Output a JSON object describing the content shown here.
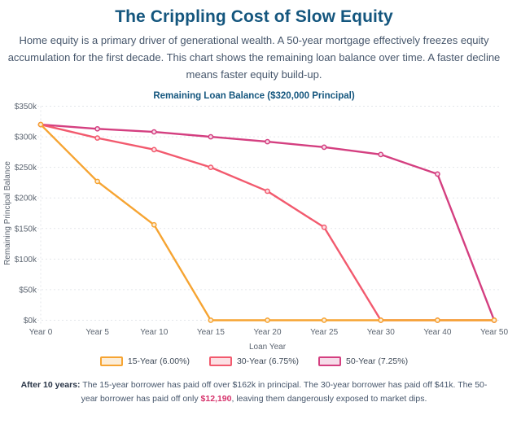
{
  "page": {
    "title": "The Crippling Cost of Slow Equity",
    "subtitle": "Home equity is a primary driver of generational wealth. A 50-year mortgage effectively freezes equity accumulation for the first decade. This chart shows the remaining loan balance over time. A faster decline means faster equity build-up.",
    "footer": {
      "prefix_bold": "After 10 years:",
      "text_before": " The 15-year borrower has paid off over $162k in principal. The 30-year borrower has paid off $41k. The 50-year borrower has paid off only ",
      "highlight": "$12,190",
      "text_after": ", leaving them dangerously exposed to market dips."
    }
  },
  "chart_data": {
    "type": "line",
    "title": "Remaining Loan Balance ($320,000 Principal)",
    "xlabel": "Loan Year",
    "ylabel": "Remaining Principal Balance",
    "x_axis_type": "category",
    "categories": [
      "Year 0",
      "Year 5",
      "Year 10",
      "Year 15",
      "Year 20",
      "Year 25",
      "Year 30",
      "Year 40",
      "Year 50"
    ],
    "y_tick_labels": [
      "$350k",
      "$300k",
      "$250k",
      "$200k",
      "$150k",
      "$100k",
      "$50k",
      "$0k"
    ],
    "y_unit": "thousand USD",
    "ylim": [
      0,
      350
    ],
    "grid": "horizontal dotted",
    "legend_position": "bottom",
    "series": [
      {
        "name": "15-Year (6.00%)",
        "color": "#F6A432",
        "tint": "#FCEDD8",
        "values": [
          320,
          227,
          156,
          0,
          0,
          0,
          0,
          0,
          0
        ]
      },
      {
        "name": "30-Year (6.75%)",
        "color": "#F25A6E",
        "tint": "#FCE0E4",
        "values": [
          320,
          298,
          279,
          250,
          211,
          152,
          0,
          0,
          0
        ]
      },
      {
        "name": "50-Year (7.25%)",
        "color": "#D43F80",
        "tint": "#F6DCE9",
        "values": [
          320,
          313,
          308,
          300,
          292,
          283,
          271,
          239,
          0
        ]
      }
    ]
  },
  "style": {
    "grid_color": "#e3e6ea",
    "axis_text_color": "#5b6470",
    "title_color": "#14567E"
  }
}
